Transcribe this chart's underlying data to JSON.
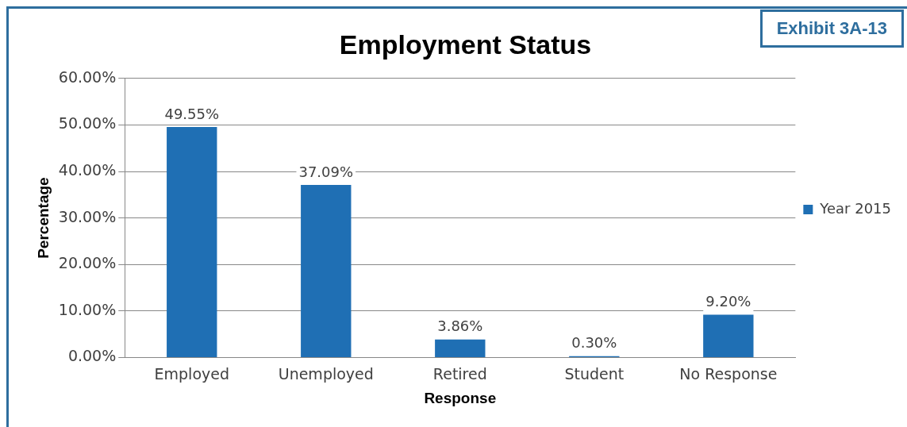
{
  "chart_data": {
    "type": "bar",
    "title": "Employment Status",
    "xlabel": "Response",
    "ylabel": "Percentage",
    "categories": [
      "Employed",
      "Unemployed",
      "Retired",
      "Student",
      "No Response"
    ],
    "series": [
      {
        "name": "Year 2015",
        "color": "#1f6fb4",
        "values": [
          49.55,
          37.09,
          3.86,
          0.3,
          9.2
        ],
        "value_labels": [
          "49.55%",
          "37.09%",
          "3.86%",
          "0.30%",
          "9.20%"
        ]
      }
    ],
    "ylim": [
      0,
      60
    ],
    "yticks": [
      {
        "value": 0,
        "label": "0.00%"
      },
      {
        "value": 10,
        "label": "10.00%"
      },
      {
        "value": 20,
        "label": "20.00%"
      },
      {
        "value": 30,
        "label": "30.00%"
      },
      {
        "value": 40,
        "label": "40.00%"
      },
      {
        "value": 50,
        "label": "50.00%"
      },
      {
        "value": 60,
        "label": "60.00%"
      }
    ],
    "grid": "y",
    "legend": "right",
    "annotations": [
      "Exhibit 3A-13"
    ]
  }
}
